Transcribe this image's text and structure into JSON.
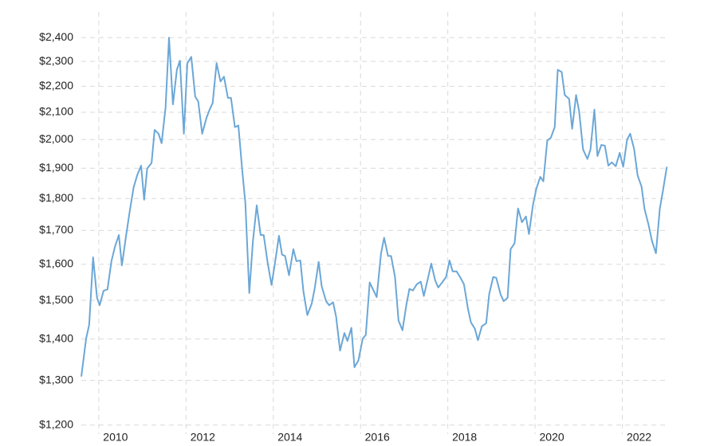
{
  "chart_data": {
    "type": "line",
    "log_y": true,
    "grid": true,
    "xlim": [
      2009.6,
      2023.05
    ],
    "xticks": [
      2010,
      2012,
      2014,
      2016,
      2018,
      2020,
      2022
    ],
    "ylim": [
      1181,
      2513
    ],
    "yticks": [
      {
        "value": 1200,
        "label": "$1,200"
      },
      {
        "value": 1300,
        "label": "$1,300"
      },
      {
        "value": 1400,
        "label": "$1,400"
      },
      {
        "value": 1500,
        "label": "$1,500"
      },
      {
        "value": 1600,
        "label": "$1,600"
      },
      {
        "value": 1700,
        "label": "$1,700"
      },
      {
        "value": 1800,
        "label": "$1,800"
      },
      {
        "value": 1900,
        "label": "$1,900"
      },
      {
        "value": 2000,
        "label": "$2,000"
      },
      {
        "value": 2100,
        "label": "$2,100"
      },
      {
        "value": 2200,
        "label": "$2,200"
      },
      {
        "value": 2300,
        "label": "$2,300"
      },
      {
        "value": 2400,
        "label": "$2,400"
      }
    ],
    "x": [
      2009.6,
      2009.71,
      2009.78,
      2009.87,
      2009.96,
      2010.02,
      2010.11,
      2010.2,
      2010.29,
      2010.37,
      2010.46,
      2010.53,
      2010.62,
      2010.71,
      2010.8,
      2010.88,
      2010.97,
      2011.04,
      2011.11,
      2011.21,
      2011.28,
      2011.37,
      2011.44,
      2011.53,
      2011.61,
      2011.7,
      2011.79,
      2011.86,
      2011.95,
      2012.03,
      2012.12,
      2012.21,
      2012.28,
      2012.37,
      2012.47,
      2012.54,
      2012.61,
      2012.7,
      2012.79,
      2012.87,
      2012.96,
      2013.03,
      2013.12,
      2013.2,
      2013.29,
      2013.36,
      2013.45,
      2013.53,
      2013.62,
      2013.71,
      2013.78,
      2013.87,
      2013.96,
      2014.04,
      2014.13,
      2014.2,
      2014.27,
      2014.36,
      2014.46,
      2014.53,
      2014.62,
      2014.69,
      2014.78,
      2014.88,
      2014.95,
      2015.04,
      2015.11,
      2015.21,
      2015.28,
      2015.37,
      2015.44,
      2015.53,
      2015.63,
      2015.7,
      2015.79,
      2015.86,
      2015.95,
      2016.05,
      2016.12,
      2016.21,
      2016.28,
      2016.37,
      2016.47,
      2016.54,
      2016.63,
      2016.7,
      2016.79,
      2016.87,
      2016.96,
      2017.05,
      2017.12,
      2017.2,
      2017.29,
      2017.38,
      2017.45,
      2017.54,
      2017.62,
      2017.71,
      2017.78,
      2017.87,
      2017.96,
      2018.04,
      2018.11,
      2018.2,
      2018.29,
      2018.37,
      2018.46,
      2018.53,
      2018.62,
      2018.69,
      2018.78,
      2018.88,
      2018.95,
      2019.04,
      2019.11,
      2019.21,
      2019.28,
      2019.37,
      2019.44,
      2019.53,
      2019.61,
      2019.7,
      2019.79,
      2019.86,
      2019.95,
      2020.03,
      2020.12,
      2020.19,
      2020.28,
      2020.36,
      2020.45,
      2020.52,
      2020.61,
      2020.68,
      2020.78,
      2020.85,
      2020.94,
      2021.01,
      2021.1,
      2021.2,
      2021.27,
      2021.36,
      2021.43,
      2021.52,
      2021.6,
      2021.68,
      2021.76,
      2021.85,
      2021.94,
      2022.02,
      2022.11,
      2022.18,
      2022.27,
      2022.35,
      2022.44,
      2022.51,
      2022.6,
      2022.68,
      2022.77,
      2022.86,
      2022.93,
      2023.02
    ],
    "series": [
      {
        "color": "#6ba7d7",
        "values": [
          1309,
          1401,
          1436,
          1620,
          1507,
          1487,
          1526,
          1530,
          1609,
          1651,
          1686,
          1597,
          1679,
          1760,
          1837,
          1876,
          1909,
          1796,
          1899,
          1918,
          2035,
          2021,
          1987,
          2117,
          2400,
          2130,
          2266,
          2303,
          2021,
          2293,
          2319,
          2160,
          2141,
          2021,
          2080,
          2110,
          2135,
          2293,
          2219,
          2238,
          2155,
          2155,
          2045,
          2051,
          1890,
          1785,
          1520,
          1663,
          1778,
          1686,
          1686,
          1605,
          1542,
          1605,
          1684,
          1628,
          1624,
          1569,
          1644,
          1609,
          1611,
          1525,
          1461,
          1491,
          1533,
          1607,
          1538,
          1498,
          1487,
          1495,
          1457,
          1371,
          1415,
          1395,
          1428,
          1331,
          1347,
          1401,
          1410,
          1549,
          1531,
          1509,
          1632,
          1678,
          1624,
          1624,
          1564,
          1447,
          1422,
          1488,
          1531,
          1527,
          1544,
          1551,
          1512,
          1558,
          1602,
          1555,
          1535,
          1549,
          1564,
          1611,
          1580,
          1580,
          1562,
          1544,
          1479,
          1442,
          1426,
          1397,
          1432,
          1440,
          1518,
          1564,
          1562,
          1516,
          1498,
          1507,
          1644,
          1661,
          1768,
          1725,
          1743,
          1689,
          1778,
          1832,
          1871,
          1856,
          1997,
          2006,
          2045,
          2266,
          2257,
          2166,
          2151,
          2039,
          2166,
          2104,
          1965,
          1932,
          1965,
          2110,
          1942,
          1981,
          1978,
          1909,
          1920,
          1907,
          1953,
          1905,
          2000,
          2021,
          1967,
          1876,
          1839,
          1766,
          1718,
          1668,
          1632,
          1768,
          1824,
          1905
        ]
      }
    ]
  }
}
